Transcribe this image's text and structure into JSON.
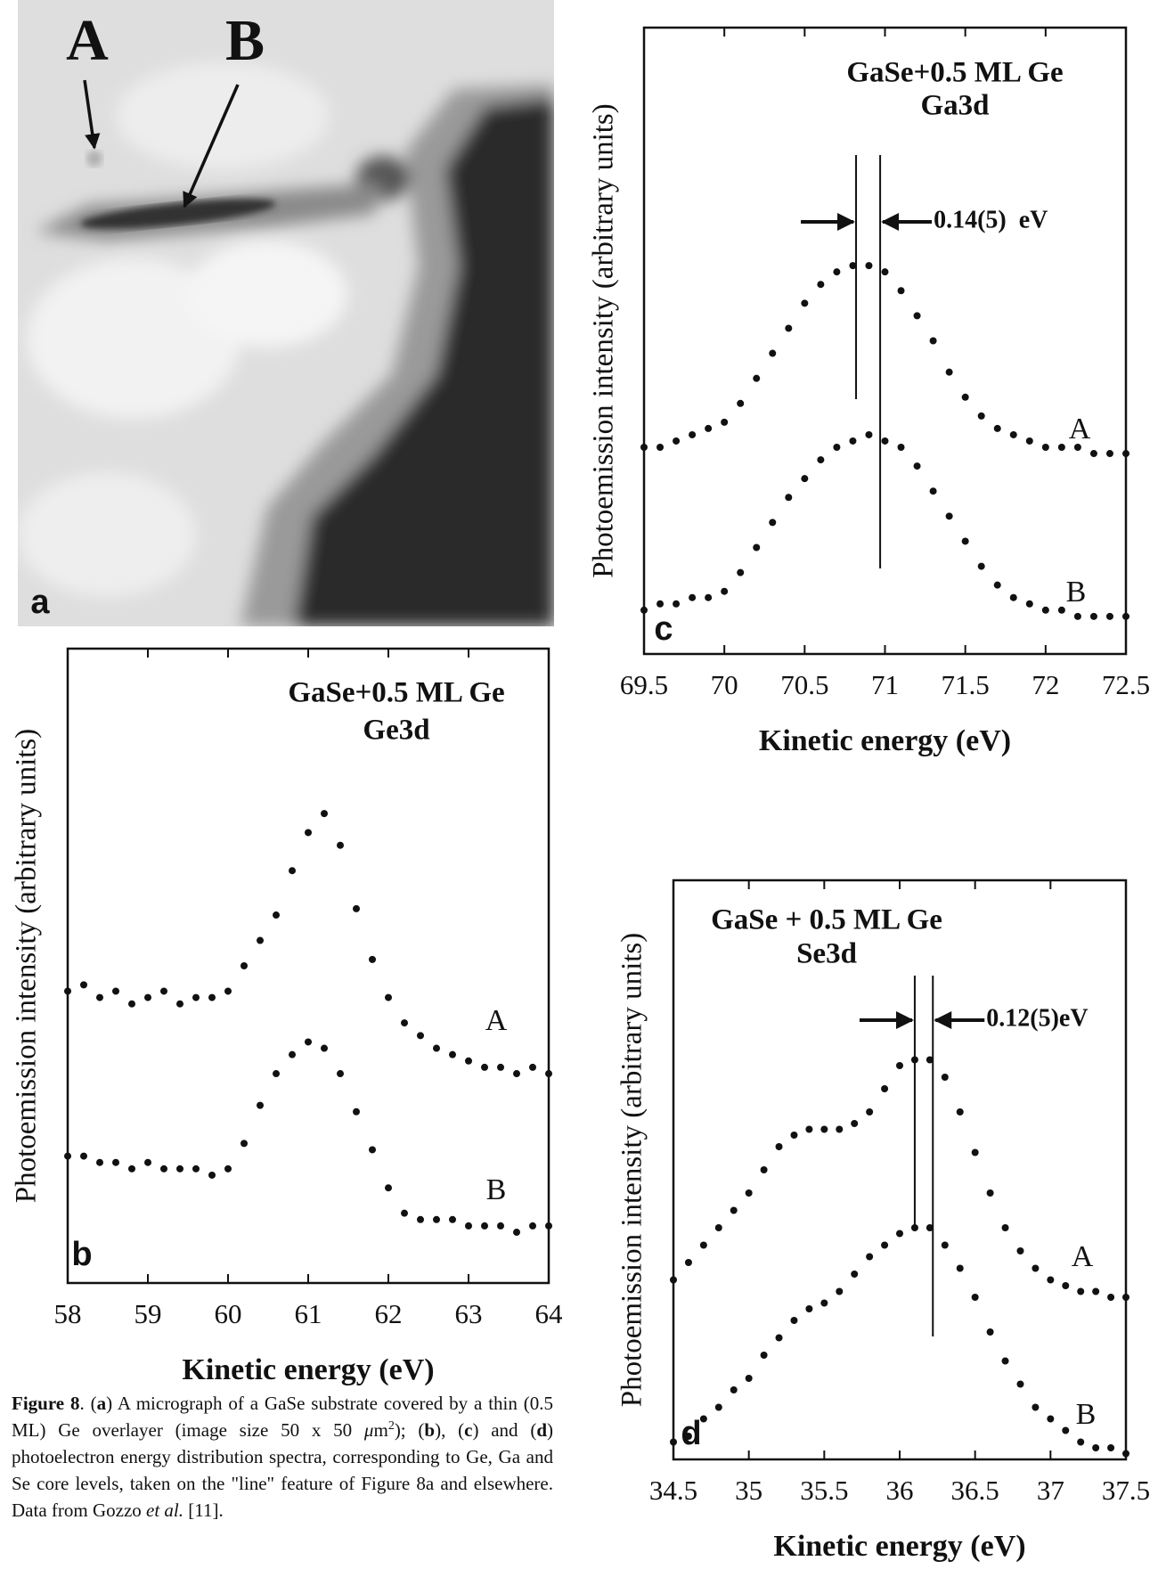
{
  "micrograph": {
    "labels": [
      "A",
      "B"
    ],
    "panel_label": "a"
  },
  "chart_data": [
    {
      "type": "scatter",
      "panel_label": "b",
      "title": "GaSe+0.5 ML Ge",
      "subtitle": "Ge3d",
      "x_label": "Kinetic energy (eV)",
      "y_label": "Photoemission intensity (arbitrary units)",
      "xlim": [
        58,
        64
      ],
      "xticks": [
        58,
        59,
        60,
        61,
        62,
        63,
        64
      ],
      "ylim": [
        0,
        100
      ],
      "x": [
        58,
        58.2,
        58.4,
        58.6,
        58.8,
        59,
        59.2,
        59.4,
        59.6,
        59.8,
        60,
        60.2,
        60.4,
        60.6,
        60.8,
        61,
        61.2,
        61.4,
        61.6,
        61.8,
        62,
        62.2,
        62.4,
        62.6,
        62.8,
        63,
        63.2,
        63.4,
        63.6,
        63.8,
        64
      ],
      "series": [
        {
          "name": "A",
          "color": "#111111",
          "values": [
            46,
            47,
            45,
            46,
            44,
            45,
            46,
            44,
            45,
            45,
            46,
            50,
            54,
            58,
            65,
            71,
            74,
            69,
            59,
            51,
            45,
            41,
            39,
            37,
            36,
            35,
            34,
            34,
            33,
            34,
            33
          ]
        },
        {
          "name": "B",
          "color": "#111111",
          "values": [
            20,
            20,
            19,
            19,
            18,
            19,
            18,
            18,
            18,
            17,
            18,
            22,
            28,
            33,
            36,
            38,
            37,
            33,
            27,
            21,
            15,
            11,
            10,
            10,
            10,
            9,
            9,
            9,
            8,
            9,
            9
          ]
        }
      ]
    },
    {
      "type": "scatter",
      "panel_label": "c",
      "title": "GaSe+0.5 ML Ge",
      "subtitle": "Ga3d",
      "x_label": "Kinetic energy (eV)",
      "y_label": "Photoemission intensity (arbitrary units)",
      "xlim": [
        69.5,
        72.5
      ],
      "xticks": [
        69.5,
        70,
        70.5,
        71,
        71.5,
        72,
        72.5
      ],
      "ylim": [
        0,
        100
      ],
      "x": [
        69.5,
        69.6,
        69.7,
        69.8,
        69.9,
        70,
        70.1,
        70.2,
        70.3,
        70.4,
        70.5,
        70.6,
        70.7,
        70.8,
        70.9,
        71,
        71.1,
        71.2,
        71.3,
        71.4,
        71.5,
        71.6,
        71.7,
        71.8,
        71.9,
        72,
        72.1,
        72.2,
        72.3,
        72.4,
        72.5
      ],
      "series": [
        {
          "name": "A",
          "color": "#111111",
          "values": [
            33,
            33,
            34,
            35,
            36,
            37,
            40,
            44,
            48,
            52,
            56,
            59,
            61,
            62,
            62,
            61,
            58,
            54,
            50,
            45,
            41,
            38,
            36,
            35,
            34,
            33,
            33,
            33,
            32,
            32,
            32
          ]
        },
        {
          "name": "B",
          "color": "#111111",
          "values": [
            7,
            8,
            8,
            9,
            9,
            10,
            13,
            17,
            21,
            25,
            28,
            31,
            33,
            34,
            35,
            34,
            33,
            30,
            26,
            22,
            18,
            14,
            11,
            9,
            8,
            7,
            7,
            6,
            6,
            6,
            6
          ]
        }
      ],
      "vlines": [
        70.82,
        70.97
      ],
      "annotation": "0.14(5)  eV"
    },
    {
      "type": "scatter",
      "panel_label": "d",
      "title": "GaSe + 0.5 ML Ge",
      "subtitle": "Se3d",
      "x_label": "Kinetic energy (eV)",
      "y_label": "Photoemission intensity (arbitrary units)",
      "xlim": [
        34.5,
        37.5
      ],
      "xticks": [
        34.5,
        35,
        35.5,
        36,
        36.5,
        37,
        37.5
      ],
      "ylim": [
        0,
        100
      ],
      "x": [
        34.5,
        34.6,
        34.7,
        34.8,
        34.9,
        35,
        35.1,
        35.2,
        35.3,
        35.4,
        35.5,
        35.6,
        35.7,
        35.8,
        35.9,
        36,
        36.1,
        36.2,
        36.3,
        36.4,
        36.5,
        36.6,
        36.7,
        36.8,
        36.9,
        37,
        37.1,
        37.2,
        37.3,
        37.4,
        37.5
      ],
      "series": [
        {
          "name": "A",
          "color": "#111111",
          "values": [
            31,
            34,
            37,
            40,
            43,
            46,
            50,
            54,
            56,
            57,
            57,
            57,
            58,
            60,
            64,
            68,
            69,
            69,
            66,
            60,
            53,
            46,
            40,
            36,
            33,
            31,
            30,
            29,
            29,
            28,
            28
          ]
        },
        {
          "name": "B",
          "color": "#111111",
          "values": [
            3,
            4,
            7,
            9,
            12,
            14,
            18,
            21,
            24,
            26,
            27,
            29,
            32,
            35,
            37,
            39,
            40,
            40,
            37,
            33,
            28,
            22,
            17,
            13,
            9,
            7,
            5,
            3,
            2,
            2,
            1
          ]
        }
      ],
      "vlines": [
        36.1,
        36.22
      ],
      "annotation": "0.12(5)eV"
    }
  ],
  "caption": [
    {
      "text": "Figure 8",
      "style": "bold"
    },
    {
      "text": ".  ("
    },
    {
      "text": "a",
      "style": "bold"
    },
    {
      "text": ") A micrograph of a GaSe substrate covered by a thin (0.5 ML) Ge overlayer (image size 50 x 50 "
    },
    {
      "text": "μ",
      "style": "italic"
    },
    {
      "text": "m"
    },
    {
      "text": "2",
      "style": "sup"
    },
    {
      "text": "); ("
    },
    {
      "text": "b",
      "style": "bold"
    },
    {
      "text": "), ("
    },
    {
      "text": "c",
      "style": "bold"
    },
    {
      "text": ") and ("
    },
    {
      "text": "d",
      "style": "bold"
    },
    {
      "text": ") photoelectron energy distribution spectra, corresponding to Ge, Ga and Se core levels, taken on the \"line\" feature of Figure 8a and elsewhere.  Data from Gozzo "
    },
    {
      "text": "et al.",
      "style": "italic"
    },
    {
      "text": " [11]."
    }
  ]
}
